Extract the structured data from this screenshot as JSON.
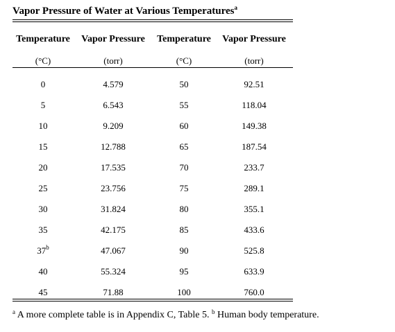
{
  "title": {
    "text": "Vapor Pressure of Water at Various Temperatures",
    "note": "a"
  },
  "table": {
    "headers": [
      "Temperature",
      "Vapor Pressure",
      "Temperature",
      "Vapor Pressure"
    ],
    "units": [
      "(°C)",
      "(torr)",
      "(°C)",
      "(torr)"
    ],
    "rows": [
      [
        "0",
        "4.579",
        "50",
        "92.51"
      ],
      [
        "5",
        "6.543",
        "55",
        "118.04"
      ],
      [
        "10",
        "9.209",
        "60",
        "149.38"
      ],
      [
        "15",
        "12.788",
        "65",
        "187.54"
      ],
      [
        "20",
        "17.535",
        "70",
        "233.7"
      ],
      [
        "25",
        "23.756",
        "75",
        "289.1"
      ],
      [
        "30",
        "31.824",
        "80",
        "355.1"
      ],
      [
        "35",
        "42.175",
        "85",
        "433.6"
      ],
      [
        {
          "text": "37",
          "note": "b"
        },
        "47.067",
        "90",
        "525.8"
      ],
      [
        "40",
        "55.324",
        "95",
        "633.9"
      ],
      [
        "45",
        "71.88",
        "100",
        "760.0"
      ]
    ]
  },
  "footnotes": [
    {
      "mark": "a",
      "text": " A more complete table is in Appendix C, Table 5. "
    },
    {
      "mark": "b",
      "text": " Human body temperature."
    }
  ]
}
